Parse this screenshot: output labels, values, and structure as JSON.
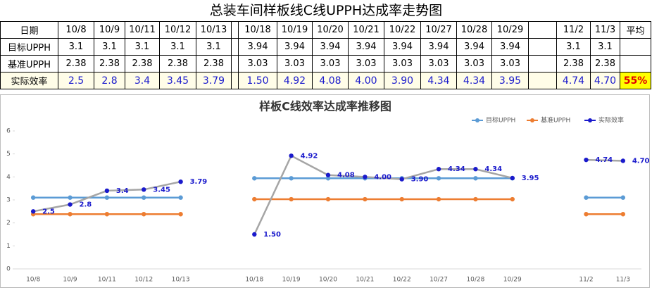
{
  "title": "总装车间样板线C线UPPH达成率走势图",
  "table": {
    "header": [
      "日期",
      "10/8",
      "10/9",
      "10/11",
      "10/12",
      "10/13",
      null,
      "10/18",
      "10/19",
      "10/20",
      "10/21",
      "10/22",
      "10/27",
      "10/28",
      "10/29",
      null,
      "11/2",
      "11/3",
      "平均"
    ],
    "rows": [
      [
        "目标UPPH",
        "3.1",
        "3.1",
        "3.1",
        "3.1",
        "3.1",
        null,
        "3.94",
        "3.94",
        "3.94",
        "3.94",
        "3.94",
        "3.94",
        "3.94",
        "3.94",
        null,
        "3.1",
        "3.1",
        null
      ],
      [
        "基准UPPH",
        "2.38",
        "2.38",
        "2.38",
        "2.38",
        "2.38",
        null,
        "3.03",
        "3.03",
        "3.03",
        "3.03",
        "3.03",
        "3.03",
        "3.03",
        "3.03",
        null,
        "2.38",
        "2.38",
        null
      ],
      [
        "实际效率",
        "2.5",
        "2.8",
        "3.4",
        "3.45",
        "3.79",
        null,
        "1.50",
        "4.92",
        "4.08",
        "4.00",
        "3.90",
        "4.34",
        "4.34",
        "3.95",
        null,
        "4.74",
        "4.70",
        "55%"
      ]
    ]
  },
  "chart_data": {
    "type": "line",
    "title": "样板C线效率达成率推移图",
    "categories": [
      "10/8",
      "10/9",
      "10/11",
      "10/12",
      "10/13",
      null,
      "10/18",
      "10/19",
      "10/20",
      "10/21",
      "10/22",
      "10/27",
      "10/28",
      "10/29",
      null,
      "11/2",
      "11/3"
    ],
    "ylim": [
      0,
      6
    ],
    "yticks": [
      0,
      1,
      2,
      3,
      4,
      5,
      6
    ],
    "legend": "top-right",
    "series": [
      {
        "name": "目标UPPH",
        "color": "#5b9bd5",
        "values": [
          3.1,
          3.1,
          3.1,
          3.1,
          3.1,
          null,
          3.94,
          3.94,
          3.94,
          3.94,
          3.94,
          3.94,
          3.94,
          3.94,
          null,
          3.1,
          3.1
        ]
      },
      {
        "name": "基准UPPH",
        "color": "#ed7d31",
        "values": [
          2.38,
          2.38,
          2.38,
          2.38,
          2.38,
          null,
          3.03,
          3.03,
          3.03,
          3.03,
          3.03,
          3.03,
          3.03,
          3.03,
          null,
          2.38,
          2.38
        ]
      },
      {
        "name": "实际效率",
        "color": "#a5a5a5",
        "marker_color": "#1a1acc",
        "values": [
          2.5,
          2.8,
          3.4,
          3.45,
          3.79,
          null,
          1.5,
          4.92,
          4.08,
          4,
          3.9,
          4.34,
          4.34,
          3.95,
          null,
          4.74,
          4.7
        ],
        "value_labels": [
          "2.5",
          "2.8",
          "3.4",
          "3.45",
          "3.79",
          null,
          "1.50",
          "4.92",
          "4.08",
          "4.00",
          "3.90",
          "4.34",
          "4.34",
          "3.95",
          null,
          "4.74",
          "4.70"
        ]
      }
    ]
  }
}
